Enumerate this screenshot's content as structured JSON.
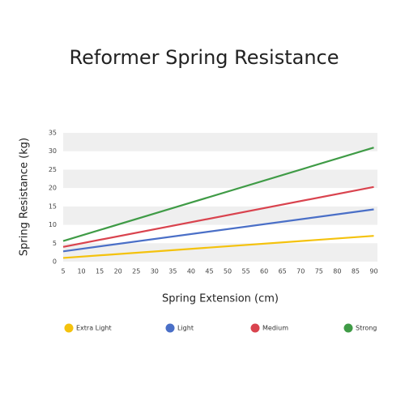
{
  "chart_data": {
    "type": "line",
    "title": "Reformer Spring Resistance",
    "x_label": "Spring Extension (cm)",
    "y_label": "Spring Resistance (kg)",
    "x": [
      5,
      90
    ],
    "series": [
      {
        "name": "Extra Light",
        "color": "#f4c20d",
        "values": [
          1,
          7
        ]
      },
      {
        "name": "Light",
        "color": "#4a6fc7",
        "values": [
          2.8,
          14.2
        ]
      },
      {
        "name": "Medium",
        "color": "#d9434e",
        "values": [
          4,
          20.3
        ]
      },
      {
        "name": "Strong",
        "color": "#3f9b46",
        "values": [
          5.6,
          31
        ]
      }
    ],
    "xlim": [
      5,
      91
    ],
    "xticks": [
      5,
      10,
      15,
      20,
      25,
      30,
      35,
      40,
      45,
      50,
      55,
      60,
      65,
      70,
      75,
      80,
      85,
      90
    ],
    "ylim": [
      0,
      35
    ],
    "yticks": [
      0,
      5,
      10,
      15,
      20,
      25,
      30,
      35
    ],
    "grid": "bands",
    "legend": "bottom"
  }
}
